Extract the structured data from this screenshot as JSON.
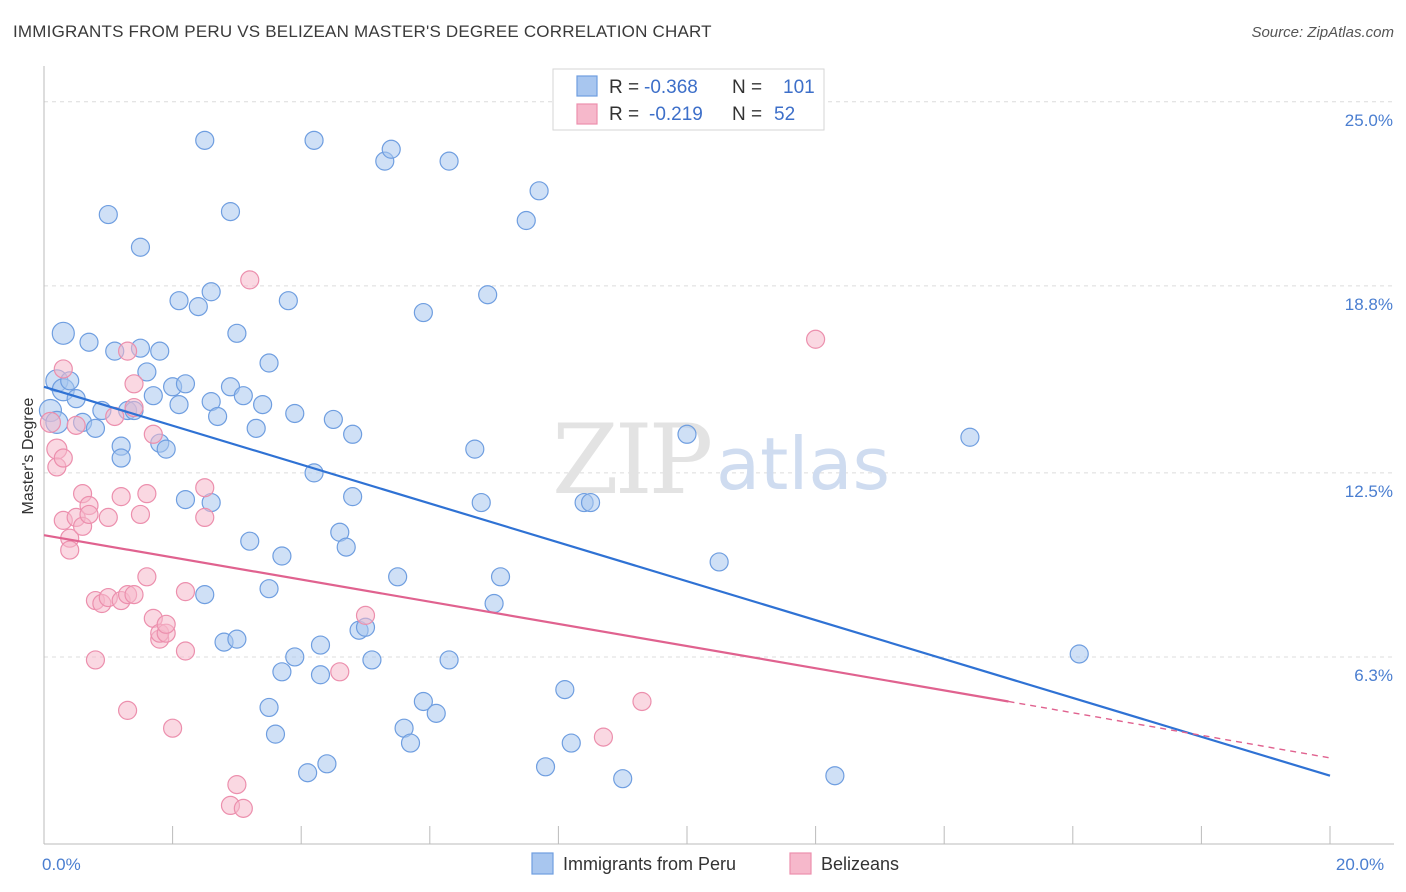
{
  "title": "IMMIGRANTS FROM PERU VS BELIZEAN MASTER'S DEGREE CORRELATION CHART",
  "source": "Source: ZipAtlas.com",
  "watermark": {
    "zip": "ZIP",
    "atlas": "atlas"
  },
  "legend_box": {
    "rows": [
      {
        "r_label": "R =",
        "r_value": "-0.368",
        "n_label": "N =",
        "n_value": "101",
        "color": "#a8c6ef"
      },
      {
        "r_label": "R =",
        "r_value": "-0.219",
        "n_label": "N =",
        "n_value": "52",
        "color": "#f6b8cb"
      }
    ]
  },
  "bottom_legend": [
    {
      "label": "Immigrants from Peru",
      "color": "#a8c6ef"
    },
    {
      "label": "Belizeans",
      "color": "#f6b8cb"
    }
  ],
  "chart_data": {
    "type": "scatter",
    "ylabel": "Master's Degree",
    "xlim": [
      0,
      20
    ],
    "ylim": [
      0,
      25.8
    ],
    "y_ticks": [
      {
        "value": 25.0,
        "label": "25.0%"
      },
      {
        "value": 18.8,
        "label": "18.8%"
      },
      {
        "value": 12.5,
        "label": "12.5%"
      },
      {
        "value": 6.3,
        "label": "6.3%"
      }
    ],
    "x_tick_labels": [
      {
        "value": 0,
        "label": "0.0%"
      },
      {
        "value": 20,
        "label": "20.0%"
      }
    ],
    "x_minor_ticks": [
      2,
      4,
      6,
      8,
      10,
      12,
      14,
      16,
      18,
      20
    ],
    "grid": true,
    "series": [
      {
        "name": "Immigrants from Peru",
        "color": "#a8c6ef",
        "stroke": "#6f9ee0",
        "trend": {
          "x0": 0,
          "y0": 15.4,
          "x1": 20,
          "y1": 2.3,
          "color": "#2f72d4"
        },
        "points": [
          [
            0.1,
            14.6
          ],
          [
            0.2,
            14.2
          ],
          [
            0.2,
            15.6
          ],
          [
            0.3,
            15.3
          ],
          [
            0.3,
            17.2
          ],
          [
            0.4,
            15.6
          ],
          [
            0.5,
            15.0
          ],
          [
            0.6,
            14.2
          ],
          [
            0.7,
            16.9
          ],
          [
            0.8,
            14.0
          ],
          [
            0.9,
            14.6
          ],
          [
            1.0,
            21.2
          ],
          [
            1.1,
            16.6
          ],
          [
            1.2,
            13.4
          ],
          [
            1.2,
            13.0
          ],
          [
            1.3,
            14.6
          ],
          [
            1.4,
            14.6
          ],
          [
            1.5,
            16.7
          ],
          [
            1.5,
            20.1
          ],
          [
            1.6,
            15.9
          ],
          [
            1.7,
            15.1
          ],
          [
            1.8,
            16.6
          ],
          [
            1.8,
            13.5
          ],
          [
            1.9,
            13.3
          ],
          [
            2.0,
            15.4
          ],
          [
            2.1,
            14.8
          ],
          [
            2.1,
            18.3
          ],
          [
            2.2,
            15.5
          ],
          [
            2.2,
            11.6
          ],
          [
            2.4,
            18.1
          ],
          [
            2.5,
            23.7
          ],
          [
            2.5,
            8.4
          ],
          [
            2.6,
            18.6
          ],
          [
            2.6,
            14.9
          ],
          [
            2.6,
            11.5
          ],
          [
            2.7,
            14.4
          ],
          [
            2.8,
            6.8
          ],
          [
            2.9,
            15.4
          ],
          [
            2.9,
            21.3
          ],
          [
            3.0,
            6.9
          ],
          [
            3.0,
            17.2
          ],
          [
            3.1,
            15.1
          ],
          [
            3.2,
            10.2
          ],
          [
            3.3,
            14.0
          ],
          [
            3.4,
            14.8
          ],
          [
            3.5,
            4.6
          ],
          [
            3.5,
            8.6
          ],
          [
            3.5,
            16.2
          ],
          [
            3.6,
            3.7
          ],
          [
            3.7,
            9.7
          ],
          [
            3.7,
            5.8
          ],
          [
            3.8,
            18.3
          ],
          [
            3.9,
            14.5
          ],
          [
            3.9,
            6.3
          ],
          [
            4.1,
            2.4
          ],
          [
            4.2,
            23.7
          ],
          [
            4.2,
            12.5
          ],
          [
            4.3,
            6.7
          ],
          [
            4.3,
            5.7
          ],
          [
            4.4,
            2.7
          ],
          [
            4.5,
            14.3
          ],
          [
            4.6,
            10.5
          ],
          [
            4.7,
            10.0
          ],
          [
            4.8,
            11.7
          ],
          [
            4.8,
            13.8
          ],
          [
            4.9,
            7.2
          ],
          [
            5.0,
            7.3
          ],
          [
            5.1,
            6.2
          ],
          [
            5.3,
            23.0
          ],
          [
            5.4,
            23.4
          ],
          [
            5.5,
            9.0
          ],
          [
            5.6,
            3.9
          ],
          [
            5.7,
            3.4
          ],
          [
            5.9,
            4.8
          ],
          [
            5.9,
            17.9
          ],
          [
            6.1,
            4.4
          ],
          [
            6.3,
            6.2
          ],
          [
            6.3,
            23.0
          ],
          [
            6.7,
            13.3
          ],
          [
            6.8,
            11.5
          ],
          [
            6.9,
            18.5
          ],
          [
            7.0,
            8.1
          ],
          [
            7.1,
            9.0
          ],
          [
            7.5,
            21.0
          ],
          [
            7.7,
            22.0
          ],
          [
            7.8,
            2.6
          ],
          [
            8.1,
            5.2
          ],
          [
            8.2,
            3.4
          ],
          [
            8.4,
            11.5
          ],
          [
            8.5,
            11.5
          ],
          [
            9.0,
            2.2
          ],
          [
            10.0,
            13.8
          ],
          [
            10.5,
            9.5
          ],
          [
            12.3,
            2.3
          ],
          [
            14.4,
            13.7
          ],
          [
            16.1,
            6.4
          ]
        ]
      },
      {
        "name": "Belizeans",
        "color": "#f6b8cb",
        "stroke": "#ec8fad",
        "trend": {
          "x0": 0,
          "y0": 10.4,
          "x1": 15.0,
          "y1": 4.8,
          "color": "#e0628f",
          "dash_to": {
            "x": 20,
            "y": 2.9
          }
        },
        "points": [
          [
            0.1,
            14.2
          ],
          [
            0.2,
            13.3
          ],
          [
            0.2,
            12.7
          ],
          [
            0.3,
            13.0
          ],
          [
            0.3,
            16.0
          ],
          [
            0.3,
            10.9
          ],
          [
            0.4,
            10.3
          ],
          [
            0.4,
            9.9
          ],
          [
            0.5,
            14.1
          ],
          [
            0.5,
            11.0
          ],
          [
            0.6,
            10.7
          ],
          [
            0.6,
            11.8
          ],
          [
            0.7,
            11.4
          ],
          [
            0.7,
            11.1
          ],
          [
            0.8,
            6.2
          ],
          [
            0.8,
            8.2
          ],
          [
            0.9,
            8.1
          ],
          [
            1.0,
            8.3
          ],
          [
            1.0,
            11.0
          ],
          [
            1.1,
            14.4
          ],
          [
            1.2,
            8.2
          ],
          [
            1.2,
            11.7
          ],
          [
            1.3,
            16.6
          ],
          [
            1.3,
            8.4
          ],
          [
            1.3,
            4.5
          ],
          [
            1.4,
            15.5
          ],
          [
            1.4,
            8.4
          ],
          [
            1.4,
            14.7
          ],
          [
            1.5,
            11.1
          ],
          [
            1.6,
            9.0
          ],
          [
            1.6,
            11.8
          ],
          [
            1.7,
            13.8
          ],
          [
            1.7,
            7.6
          ],
          [
            1.8,
            6.9
          ],
          [
            1.8,
            7.1
          ],
          [
            1.9,
            7.1
          ],
          [
            1.9,
            7.4
          ],
          [
            2.0,
            3.9
          ],
          [
            2.2,
            6.5
          ],
          [
            2.2,
            8.5
          ],
          [
            2.5,
            11.0
          ],
          [
            2.5,
            12.0
          ],
          [
            2.9,
            1.3
          ],
          [
            3.0,
            2.0
          ],
          [
            3.1,
            1.2
          ],
          [
            3.2,
            19.0
          ],
          [
            4.6,
            5.8
          ],
          [
            5.0,
            7.7
          ],
          [
            8.7,
            3.6
          ],
          [
            9.3,
            4.8
          ],
          [
            12.0,
            17.0
          ]
        ]
      }
    ]
  }
}
